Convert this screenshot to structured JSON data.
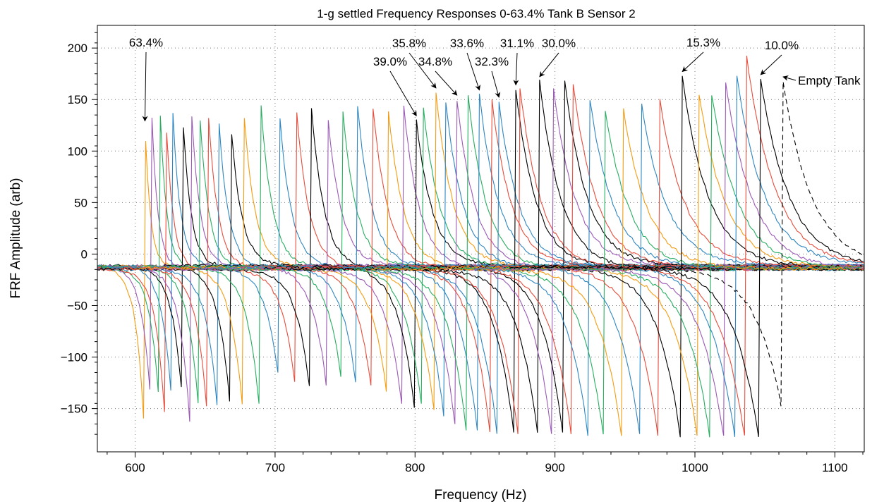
{
  "chart_data": {
    "type": "line",
    "title": "1-g settled Frequency Responses 0-63.4% Tank B Sensor 2",
    "xlabel": "Frequency (Hz)",
    "ylabel": "FRF Amplitude (arb)",
    "xlim": [
      573,
      1121
    ],
    "ylim": [
      -192,
      222
    ],
    "x_ticks": [
      600,
      700,
      800,
      900,
      1000,
      1100
    ],
    "y_ticks": [
      200,
      150,
      100,
      50,
      0,
      -50,
      -100,
      -150
    ],
    "grid": "dotted",
    "legend": "none",
    "colors": [
      "#f39c12",
      "#9b59b6",
      "#27ae60",
      "#e74c3c",
      "#2e86c1",
      "#000000"
    ],
    "series": [
      {
        "f0": 607,
        "peak": 125,
        "trough": -185,
        "color": "#f39c12"
      },
      {
        "f0": 612,
        "peak": 133,
        "trough": -162,
        "color": "#9b59b6"
      },
      {
        "f0": 618,
        "peak": 135,
        "trough": -165,
        "color": "#27ae60"
      },
      {
        "f0": 622,
        "peak": 133,
        "trough": -175,
        "color": "#e74c3c"
      },
      {
        "f0": 627,
        "peak": 136,
        "trough": -162,
        "color": "#2e86c1"
      },
      {
        "f0": 634,
        "peak": 136,
        "trough": -148,
        "color": "#000000"
      },
      {
        "f0": 640,
        "peak": 147,
        "trough": -184,
        "color": "#9b59b6"
      },
      {
        "f0": 646,
        "peak": 141,
        "trough": -163,
        "color": "#27ae60"
      },
      {
        "f0": 652,
        "peak": 144,
        "trough": -165,
        "color": "#e74c3c"
      },
      {
        "f0": 659,
        "peak": 147,
        "trough": -155,
        "color": "#2e86c1"
      },
      {
        "f0": 668,
        "peak": 135,
        "trough": -150,
        "color": "#000000"
      },
      {
        "f0": 678,
        "peak": 133,
        "trough": -170,
        "color": "#f39c12"
      },
      {
        "f0": 690,
        "peak": 143,
        "trough": -170,
        "color": "#27ae60"
      },
      {
        "f0": 703,
        "peak": 139,
        "trough": -128,
        "color": "#2e86c1"
      },
      {
        "f0": 715,
        "peak": 147,
        "trough": -137,
        "color": "#e74c3c"
      },
      {
        "f0": 726,
        "peak": 142,
        "trough": -148,
        "color": "#000000"
      },
      {
        "f0": 737,
        "peak": 146,
        "trough": -132,
        "color": "#9b59b6"
      },
      {
        "f0": 748,
        "peak": 145,
        "trough": -130,
        "color": "#27ae60"
      },
      {
        "f0": 759,
        "peak": 144,
        "trough": -140,
        "color": "#2e86c1"
      },
      {
        "f0": 770,
        "peak": 142,
        "trough": -145,
        "color": "#e74c3c"
      },
      {
        "f0": 781,
        "peak": 140,
        "trough": -150,
        "color": "#f39c12"
      },
      {
        "f0": 792,
        "peak": 143,
        "trough": -165,
        "color": "#9b59b6"
      },
      {
        "f0": 801,
        "peak": 130,
        "trough": -168,
        "color": "#000000"
      },
      {
        "f0": 806,
        "peak": 142,
        "trough": -165,
        "color": "#27ae60"
      },
      {
        "f0": 815,
        "peak": 157,
        "trough": -170,
        "color": "#f39c12"
      },
      {
        "f0": 822,
        "peak": 148,
        "trough": -175,
        "color": "#2e86c1"
      },
      {
        "f0": 830,
        "peak": 150,
        "trough": -185,
        "color": "#9b59b6"
      },
      {
        "f0": 838,
        "peak": 153,
        "trough": -190,
        "color": "#27ae60"
      },
      {
        "f0": 846,
        "peak": 155,
        "trough": -192,
        "color": "#2e86c1"
      },
      {
        "f0": 855,
        "peak": 150,
        "trough": -192,
        "color": "#e74c3c"
      },
      {
        "f0": 860,
        "peak": 148,
        "trough": -192,
        "color": "#2e86c1"
      },
      {
        "f0": 872,
        "peak": 160,
        "trough": -192,
        "color": "#000000"
      },
      {
        "f0": 875,
        "peak": 162,
        "trough": -192,
        "color": "#e74c3c"
      },
      {
        "f0": 889,
        "peak": 168,
        "trough": -192,
        "color": "#000000"
      },
      {
        "f0": 899,
        "peak": 160,
        "trough": -192,
        "color": "#9b59b6"
      },
      {
        "f0": 907,
        "peak": 168,
        "trough": -192,
        "color": "#000000"
      },
      {
        "f0": 913,
        "peak": 165,
        "trough": -192,
        "color": "#e74c3c"
      },
      {
        "f0": 925,
        "peak": 150,
        "trough": -192,
        "color": "#2e86c1"
      },
      {
        "f0": 936,
        "peak": 140,
        "trough": -192,
        "color": "#27ae60"
      },
      {
        "f0": 949,
        "peak": 140,
        "trough": -192,
        "color": "#f39c12"
      },
      {
        "f0": 962,
        "peak": 145,
        "trough": -192,
        "color": "#2e86c1"
      },
      {
        "f0": 975,
        "peak": 150,
        "trough": -192,
        "color": "#e74c3c"
      },
      {
        "f0": 991,
        "peak": 173,
        "trough": -192,
        "color": "#000000"
      },
      {
        "f0": 1003,
        "peak": 155,
        "trough": -192,
        "color": "#f39c12"
      },
      {
        "f0": 1012,
        "peak": 155,
        "trough": -192,
        "color": "#27ae60"
      },
      {
        "f0": 1022,
        "peak": 165,
        "trough": -192,
        "color": "#9b59b6"
      },
      {
        "f0": 1030,
        "peak": 172,
        "trough": -192,
        "color": "#2e86c1"
      },
      {
        "f0": 1037,
        "peak": 192,
        "trough": -192,
        "color": "#e74c3c"
      },
      {
        "f0": 1047,
        "peak": 170,
        "trough": -192,
        "color": "#000000"
      },
      {
        "f0": 1063,
        "peak": 168,
        "trough": -158,
        "color": "#000000",
        "dashed": true
      }
    ],
    "annotations": [
      {
        "text": "63.4%",
        "x": 607,
        "y": 125
      },
      {
        "text": "39.0%",
        "x": 801,
        "y": 130
      },
      {
        "text": "35.8%",
        "x": 815,
        "y": 157
      },
      {
        "text": "34.8%",
        "x": 830,
        "y": 150
      },
      {
        "text": "33.6%",
        "x": 846,
        "y": 155
      },
      {
        "text": "32.3%",
        "x": 860,
        "y": 148
      },
      {
        "text": "31.1%",
        "x": 872,
        "y": 160
      },
      {
        "text": "30.0%",
        "x": 889,
        "y": 168
      },
      {
        "text": "15.3%",
        "x": 991,
        "y": 173
      },
      {
        "text": "10.0%",
        "x": 1047,
        "y": 170
      },
      {
        "text": "Empty Tank",
        "x": 1063,
        "y": 168
      }
    ]
  }
}
